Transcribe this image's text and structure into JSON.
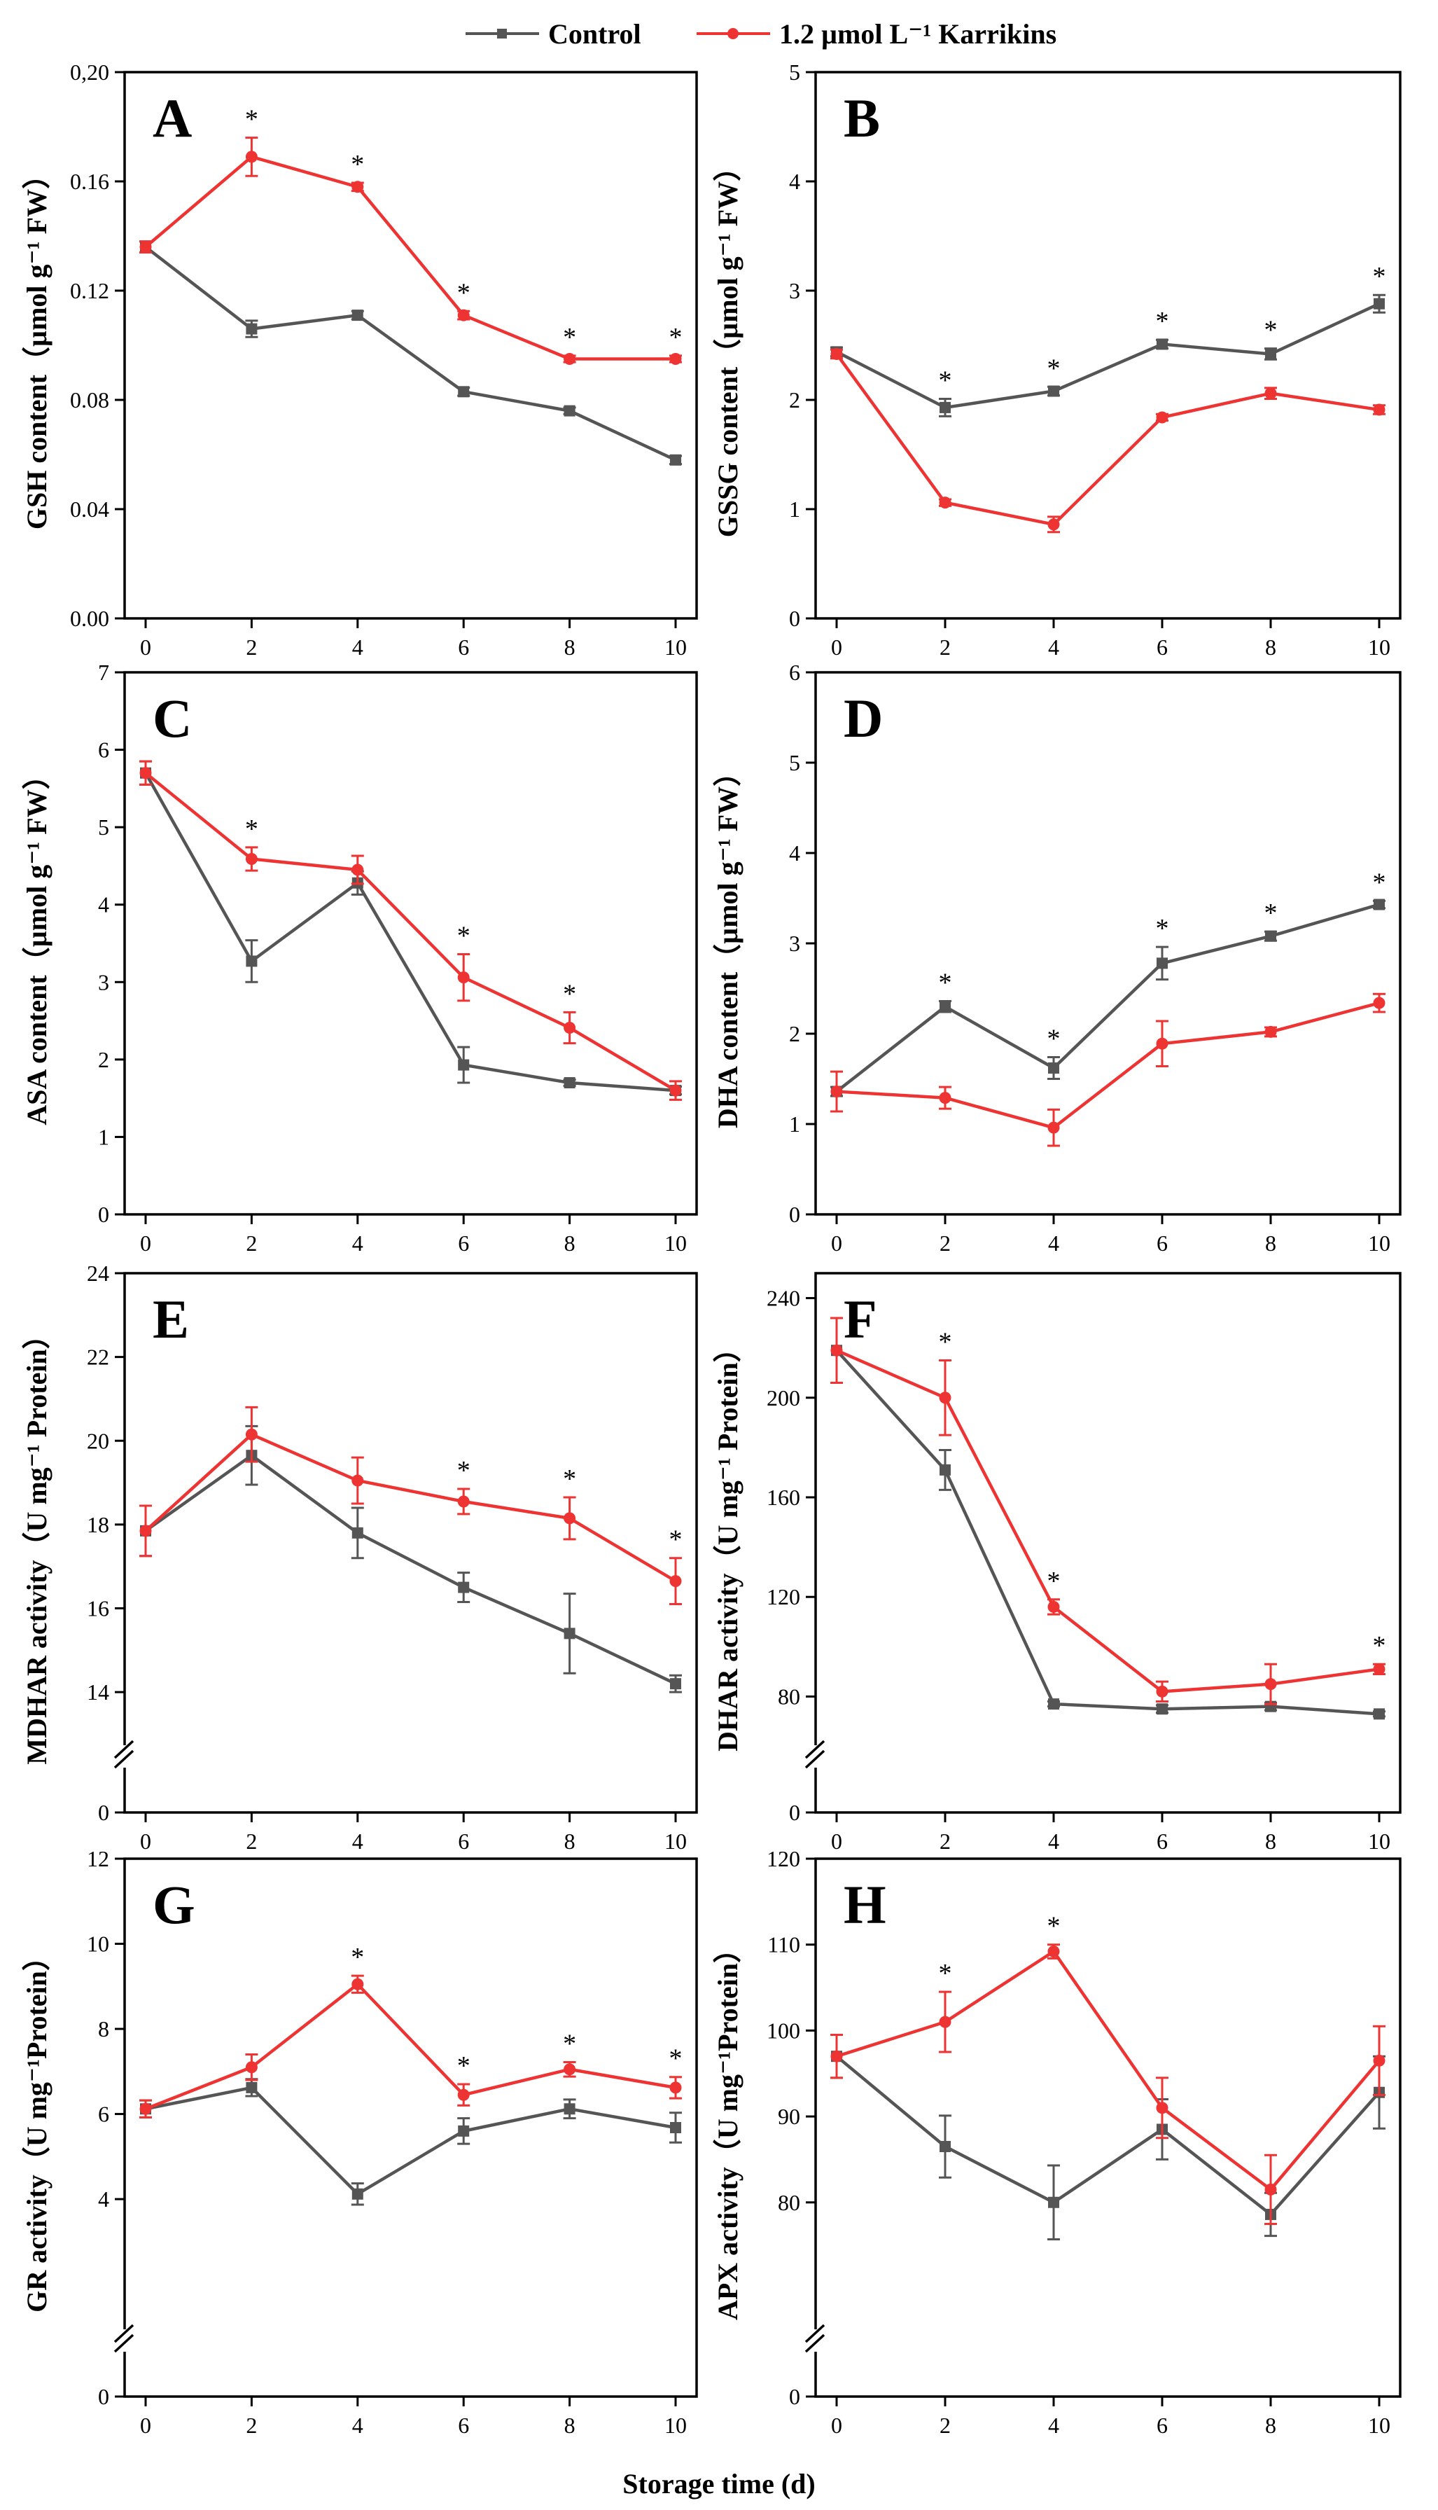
{
  "legend": [
    {
      "name": "Control",
      "color": "#555555"
    },
    {
      "name": "1.2 µmol L⁻¹ Karrikins",
      "color": "#ee3333"
    }
  ],
  "x_axis_label": "Storage time (d)",
  "chart_data": [
    {
      "type": "line",
      "panel": "A",
      "ylabel": "GSH content（µmol g⁻¹ FW）",
      "x": [
        0,
        2,
        4,
        6,
        8,
        10
      ],
      "xticks": [
        "0",
        "2",
        "4",
        "6",
        "8",
        "10"
      ],
      "ylim": [
        0,
        0.2
      ],
      "yticks": [
        "0.00",
        "0.04",
        "0.08",
        "0.12",
        "0.16",
        "0,20"
      ],
      "axis_break": false,
      "series": [
        {
          "name": "Control",
          "values": [
            0.136,
            0.106,
            0.111,
            0.083,
            0.076,
            0.058
          ],
          "errors": [
            0.002,
            0.003,
            0.0015,
            0.0015,
            0.0012,
            0.0015
          ]
        },
        {
          "name": "1.2 µmol L⁻¹ Karrikins",
          "values": [
            0.136,
            0.169,
            0.158,
            0.111,
            0.095,
            0.095
          ],
          "errors": [
            0.002,
            0.007,
            0.0015,
            0.0015,
            0.0012,
            0.0012
          ]
        }
      ],
      "significance": [
        "",
        "*",
        "*",
        "*",
        "*",
        "*"
      ]
    },
    {
      "type": "line",
      "panel": "B",
      "ylabel": "GSSG content（µmol g⁻¹ FW）",
      "x": [
        0,
        2,
        4,
        6,
        8,
        10
      ],
      "xticks": [
        "0",
        "2",
        "4",
        "6",
        "8",
        "10"
      ],
      "ylim": [
        0,
        5
      ],
      "yticks": [
        "0",
        "1",
        "2",
        "3",
        "4",
        "5"
      ],
      "axis_break": false,
      "series": [
        {
          "name": "Control",
          "values": [
            2.44,
            1.93,
            2.08,
            2.51,
            2.42,
            2.88
          ],
          "errors": [
            0.04,
            0.08,
            0.04,
            0.04,
            0.05,
            0.08
          ]
        },
        {
          "name": "1.2 µmol L⁻¹ Karrikins",
          "values": [
            2.42,
            1.06,
            0.86,
            1.84,
            2.06,
            1.91
          ],
          "errors": [
            0.04,
            0.03,
            0.07,
            0.03,
            0.05,
            0.04
          ]
        }
      ],
      "significance": [
        "",
        "*",
        "*",
        "*",
        "*",
        "*"
      ]
    },
    {
      "type": "line",
      "panel": "C",
      "ylabel": "ASA content（µmol g⁻¹ FW）",
      "x": [
        0,
        2,
        4,
        6,
        8,
        10
      ],
      "xticks": [
        "0",
        "2",
        "4",
        "6",
        "8",
        "10"
      ],
      "ylim": [
        0,
        7
      ],
      "yticks": [
        "0",
        "1",
        "2",
        "3",
        "4",
        "5",
        "6",
        "7"
      ],
      "axis_break": false,
      "series": [
        {
          "name": "Control",
          "values": [
            5.7,
            3.27,
            4.28,
            1.93,
            1.7,
            1.6
          ],
          "errors": [
            0.15,
            0.27,
            0.15,
            0.23,
            0.04,
            0.05
          ]
        },
        {
          "name": "1.2 µmol L⁻¹ Karrikins",
          "values": [
            5.7,
            4.59,
            4.45,
            3.06,
            2.41,
            1.6
          ],
          "errors": [
            0.15,
            0.15,
            0.18,
            0.3,
            0.2,
            0.12
          ]
        }
      ],
      "significance": [
        "",
        "*",
        "",
        "*",
        "*",
        ""
      ]
    },
    {
      "type": "line",
      "panel": "D",
      "ylabel": "DHA content（µmol g⁻¹ FW）",
      "x": [
        0,
        2,
        4,
        6,
        8,
        10
      ],
      "xticks": [
        "0",
        "2",
        "4",
        "6",
        "8",
        "10"
      ],
      "ylim": [
        0,
        6
      ],
      "yticks": [
        "0",
        "1",
        "2",
        "3",
        "4",
        "5",
        "6"
      ],
      "axis_break": false,
      "series": [
        {
          "name": "Control",
          "values": [
            1.36,
            2.3,
            1.62,
            2.78,
            3.08,
            3.43
          ],
          "errors": [
            0.05,
            0.06,
            0.12,
            0.18,
            0.05,
            0.04
          ]
        },
        {
          "name": "1.2 µmol L⁻¹ Karrikins",
          "values": [
            1.36,
            1.29,
            0.96,
            1.89,
            2.02,
            2.34
          ],
          "errors": [
            0.22,
            0.12,
            0.2,
            0.25,
            0.05,
            0.1
          ]
        }
      ],
      "significance": [
        "",
        "*",
        "*",
        "*",
        "*",
        "*"
      ]
    },
    {
      "type": "line",
      "panel": "E",
      "ylabel": "MDHAR activity（U mg⁻¹ Protein）",
      "x": [
        0,
        2,
        4,
        6,
        8,
        10
      ],
      "xticks": [
        "0",
        "2",
        "4",
        "6",
        "8",
        "10"
      ],
      "ylim": [
        13.3,
        24
      ],
      "yticks": [
        "14",
        "16",
        "18",
        "20",
        "22",
        "24"
      ],
      "axis_break": true,
      "zero_label": "0",
      "series": [
        {
          "name": "Control",
          "values": [
            17.85,
            19.65,
            17.8,
            16.5,
            15.4,
            14.2
          ],
          "errors": [
            0.6,
            0.7,
            0.6,
            0.35,
            0.95,
            0.2
          ]
        },
        {
          "name": "1.2 µmol L⁻¹ Karrikins",
          "values": [
            17.85,
            20.15,
            19.05,
            18.55,
            18.15,
            16.65
          ],
          "errors": [
            0.6,
            0.65,
            0.55,
            0.3,
            0.5,
            0.55
          ]
        }
      ],
      "significance": [
        "",
        "",
        "",
        "*",
        "*",
        "*"
      ]
    },
    {
      "type": "line",
      "panel": "F",
      "ylabel": "DHAR activity（U mg⁻¹ Protein）",
      "x": [
        0,
        2,
        4,
        6,
        8,
        10
      ],
      "xticks": [
        "0",
        "2",
        "4",
        "6",
        "8",
        "10"
      ],
      "ylim": [
        70,
        250
      ],
      "yticks": [
        "80",
        "120",
        "160",
        "200",
        "240"
      ],
      "axis_break": true,
      "zero_label": "0",
      "series": [
        {
          "name": "Control",
          "values": [
            219,
            171,
            77,
            75,
            76,
            73
          ],
          "errors": [
            13,
            8,
            1,
            1.5,
            1.5,
            1
          ]
        },
        {
          "name": "1.2 µmol L⁻¹ Karrikins",
          "values": [
            219,
            200,
            116,
            82,
            85,
            91
          ],
          "errors": [
            13,
            15,
            3,
            4,
            8,
            2
          ]
        }
      ],
      "significance": [
        "",
        "*",
        "*",
        "",
        "",
        "*"
      ]
    },
    {
      "type": "line",
      "panel": "G",
      "ylabel": "GR activity（U mg⁻¹Protein）",
      "x": [
        0,
        2,
        4,
        6,
        8,
        10
      ],
      "xticks": [
        "0",
        "2",
        "4",
        "6",
        "8",
        "10"
      ],
      "ylim": [
        1.5,
        12
      ],
      "yticks": [
        "4",
        "6",
        "8",
        "10",
        "12"
      ],
      "axis_break": true,
      "zero_label": "0",
      "series": [
        {
          "name": "Control",
          "values": [
            6.12,
            6.62,
            4.12,
            5.6,
            6.12,
            5.68
          ],
          "errors": [
            0.2,
            0.2,
            0.25,
            0.3,
            0.22,
            0.35
          ]
        },
        {
          "name": "1.2 µmol L⁻¹ Karrikins",
          "values": [
            6.12,
            7.1,
            9.05,
            6.45,
            7.05,
            6.62
          ],
          "errors": [
            0.2,
            0.3,
            0.2,
            0.25,
            0.17,
            0.25
          ]
        }
      ],
      "significance": [
        "",
        "",
        "*",
        "*",
        "*",
        "*"
      ]
    },
    {
      "type": "line",
      "panel": "H",
      "ylabel": "APX activity（U mg⁻¹Protein）",
      "x": [
        0,
        2,
        4,
        6,
        8,
        10
      ],
      "xticks": [
        "0",
        "2",
        "4",
        "6",
        "8",
        "10"
      ],
      "ylim": [
        68,
        120
      ],
      "yticks": [
        "80",
        "90",
        "100",
        "110",
        "120"
      ],
      "axis_break": true,
      "zero_label": "0",
      "series": [
        {
          "name": "Control",
          "values": [
            97.0,
            86.5,
            80.0,
            88.5,
            78.6,
            92.8
          ],
          "errors": [
            2.5,
            3.6,
            4.3,
            3.5,
            2.5,
            4.2
          ]
        },
        {
          "name": "1.2 µmol L⁻¹ Karrikins",
          "values": [
            97.0,
            101.0,
            109.2,
            91.0,
            81.5,
            96.5
          ],
          "errors": [
            2.5,
            3.5,
            0.8,
            3.5,
            4.0,
            4.0
          ]
        }
      ],
      "significance": [
        "",
        "*",
        "*",
        "",
        "",
        ""
      ]
    }
  ]
}
